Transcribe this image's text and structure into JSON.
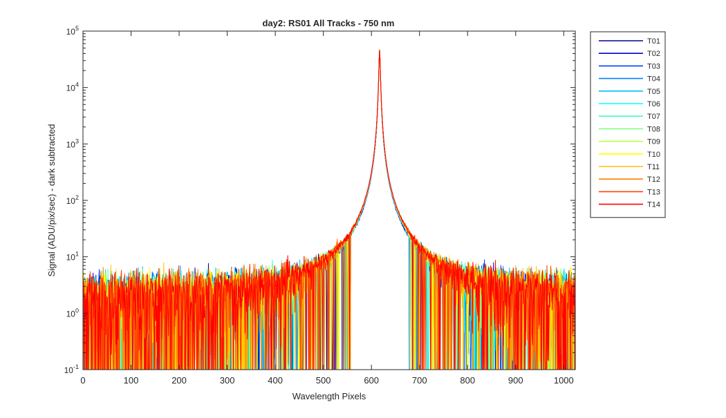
{
  "chart_data": {
    "type": "line",
    "title": "day2: RS01  All Tracks - 750 nm",
    "xlabel": "Wavelength Pixels",
    "ylabel": "Signal (ADU/pix/sec) - dark subtracted",
    "xlim": [
      0,
      1024
    ],
    "ylim": [
      0.1,
      100000
    ],
    "yscale": "log",
    "grid": false,
    "legend_position": "outside-right-top",
    "x_ticks": [
      0,
      100,
      200,
      300,
      400,
      500,
      600,
      700,
      800,
      900,
      1000
    ],
    "x_tick_labels": [
      "0",
      "100",
      "200",
      "300",
      "400",
      "500",
      "600",
      "700",
      "800",
      "900",
      "1000"
    ],
    "y_ticks": [
      0.1,
      1,
      10,
      100,
      1000,
      10000,
      100000
    ],
    "y_tick_labels": [
      {
        "base": "10",
        "exp": "-1"
      },
      {
        "base": "10",
        "exp": "0"
      },
      {
        "base": "10",
        "exp": "1"
      },
      {
        "base": "10",
        "exp": "2"
      },
      {
        "base": "10",
        "exp": "3"
      },
      {
        "base": "10",
        "exp": "4"
      },
      {
        "base": "10",
        "exp": "5"
      }
    ],
    "peak": {
      "x": 617,
      "y": 47000
    },
    "baseline_level": 1.5,
    "series": [
      {
        "name": "T01",
        "color": "#00008f"
      },
      {
        "name": "T02",
        "color": "#0000cc"
      },
      {
        "name": "T03",
        "color": "#0040ff"
      },
      {
        "name": "T04",
        "color": "#0080ff"
      },
      {
        "name": "T05",
        "color": "#00bfff"
      },
      {
        "name": "T06",
        "color": "#00ffff"
      },
      {
        "name": "T07",
        "color": "#40ffbf"
      },
      {
        "name": "T08",
        "color": "#80ff80"
      },
      {
        "name": "T09",
        "color": "#bfff40"
      },
      {
        "name": "T10",
        "color": "#ffff00"
      },
      {
        "name": "T11",
        "color": "#ffbf00"
      },
      {
        "name": "T12",
        "color": "#ff8000"
      },
      {
        "name": "T13",
        "color": "#ff4000"
      },
      {
        "name": "T14",
        "color": "#ff0000"
      }
    ]
  }
}
